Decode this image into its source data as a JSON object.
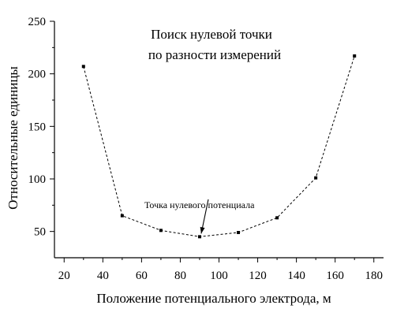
{
  "chart_data": {
    "type": "line",
    "title_lines": [
      "Поиск нулевой точки",
      "по разности измерений"
    ],
    "xlabel": "Положение потенциального электрода,  м",
    "ylabel": "Относительные единицы",
    "xlim": [
      15,
      185
    ],
    "ylim": [
      25,
      250
    ],
    "xticks": [
      20,
      40,
      60,
      80,
      100,
      120,
      140,
      160,
      180
    ],
    "yticks": [
      50,
      100,
      150,
      200,
      250
    ],
    "grid": false,
    "series": [
      {
        "x": [
          30,
          50,
          70,
          90,
          110,
          130,
          150,
          170
        ],
        "y": [
          207,
          65,
          51,
          45,
          49,
          63,
          101,
          217
        ],
        "line_style": "dashed",
        "marker": "square"
      }
    ],
    "annotation": {
      "text": "Точка нулевого потенциала",
      "points_to": {
        "x": 90,
        "y": 45
      }
    }
  }
}
